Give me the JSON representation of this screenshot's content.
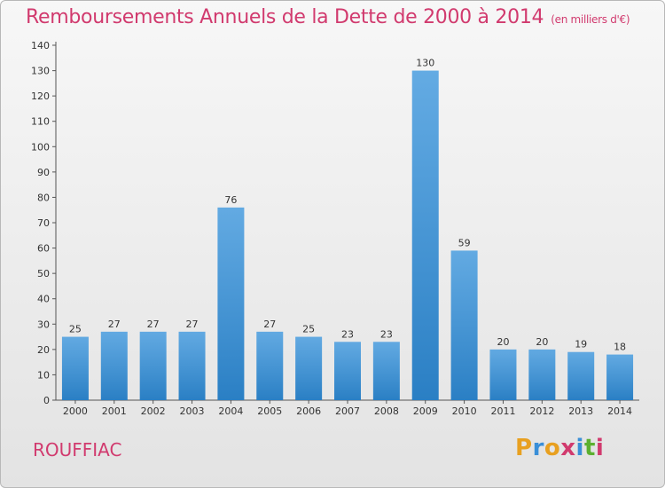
{
  "chart_data": {
    "type": "bar",
    "title": "Remboursements Annuels de la Dette de 2000 à 2014",
    "subtitle": "(en milliers d'€)",
    "categories": [
      "2000",
      "2001",
      "2002",
      "2003",
      "2004",
      "2005",
      "2006",
      "2007",
      "2008",
      "2009",
      "2010",
      "2011",
      "2012",
      "2013",
      "2014"
    ],
    "values": [
      25,
      27,
      27,
      27,
      76,
      27,
      25,
      23,
      23,
      130,
      59,
      20,
      20,
      19,
      18
    ],
    "ylim": [
      0,
      140
    ],
    "yticks": [
      0,
      10,
      20,
      30,
      40,
      50,
      60,
      70,
      80,
      90,
      100,
      110,
      120,
      130,
      140
    ],
    "grid": false,
    "legend": "none",
    "bar_color": "#4a9ee0",
    "bar_color_dark": "#2a7fc4"
  },
  "footer": {
    "city": "ROUFFIAC",
    "logo_letters": [
      "P",
      "r",
      "o",
      "x",
      "i",
      "t",
      "i"
    ]
  },
  "colors": {
    "title": "#d13a6e",
    "logo": [
      "#e8a020",
      "#3a8fd8",
      "#e8a020",
      "#d13a6e",
      "#3a8fd8",
      "#5cb030",
      "#d13a6e"
    ]
  }
}
